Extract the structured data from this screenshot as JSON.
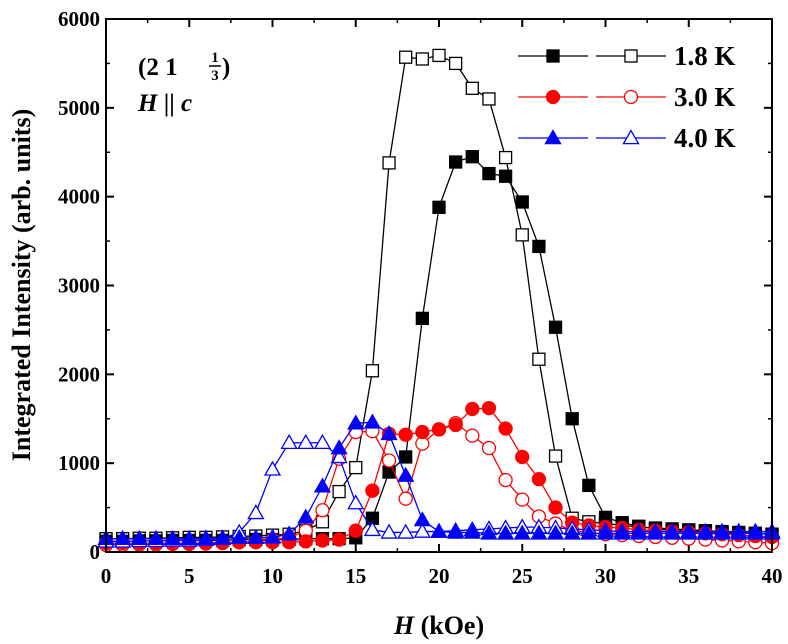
{
  "chart_data": {
    "type": "line",
    "title": "",
    "xlabel_italic": "H",
    "xlabel_rest": " (kOe)",
    "ylabel": "Integrated Intensity (arb. units)",
    "xlim": [
      0,
      40
    ],
    "ylim": [
      0,
      6000
    ],
    "xticks": [
      0,
      5,
      10,
      15,
      20,
      25,
      30,
      35,
      40
    ],
    "yticks": [
      0,
      1000,
      2000,
      3000,
      4000,
      5000,
      6000
    ],
    "annotation": {
      "reflection_prefix": "(2 1 ",
      "frac_num": "1",
      "frac_den": "3",
      "reflection_suffix": ")",
      "field_italic": "H",
      "field_mid": " || ",
      "field_axis_italic": "c"
    },
    "series": [
      {
        "name": "1.8 K",
        "color": "#000000",
        "marker": "square",
        "filled": {
          "x": [
            0,
            1,
            2,
            3,
            4,
            5,
            6,
            7,
            8,
            9,
            10,
            11,
            12,
            13,
            14,
            15,
            16,
            17,
            18,
            19,
            20,
            21,
            22,
            23,
            24,
            25,
            26,
            27,
            28,
            29,
            30,
            31,
            32,
            33,
            34,
            35,
            36,
            37,
            38,
            39,
            40
          ],
          "y": [
            120,
            120,
            125,
            125,
            130,
            130,
            130,
            130,
            140,
            140,
            140,
            140,
            150,
            150,
            150,
            160,
            380,
            900,
            1070,
            2630,
            3880,
            4390,
            4450,
            4260,
            4230,
            3940,
            3440,
            2530,
            1500,
            750,
            390,
            330,
            290,
            260,
            250,
            240,
            230,
            220,
            210,
            210,
            200
          ]
        },
        "open": {
          "x": [
            0,
            1,
            2,
            3,
            4,
            5,
            6,
            7,
            8,
            9,
            10,
            11,
            12,
            13,
            14,
            15,
            16,
            17,
            18,
            19,
            20,
            21,
            22,
            23,
            24,
            25,
            26,
            27,
            28,
            29,
            30,
            31,
            32,
            33,
            34,
            35,
            36,
            37,
            38,
            39,
            40
          ],
          "y": [
            150,
            150,
            155,
            155,
            160,
            165,
            165,
            170,
            175,
            180,
            190,
            200,
            240,
            340,
            680,
            950,
            2040,
            4380,
            5570,
            5550,
            5590,
            5500,
            5220,
            5100,
            4440,
            3570,
            2170,
            1080,
            380,
            340,
            320,
            300,
            280,
            270,
            260,
            250,
            240,
            230,
            220,
            210,
            200
          ]
        }
      },
      {
        "name": "3.0 K",
        "color": "#ff0000",
        "marker": "circle",
        "filled": {
          "x": [
            0,
            1,
            2,
            3,
            4,
            5,
            6,
            7,
            8,
            9,
            10,
            11,
            12,
            13,
            14,
            15,
            16,
            17,
            18,
            19,
            20,
            21,
            22,
            23,
            24,
            25,
            26,
            27,
            28,
            29,
            30,
            31,
            32,
            33,
            34,
            35,
            36,
            37,
            38,
            39,
            40
          ],
          "y": [
            100,
            100,
            100,
            100,
            100,
            100,
            100,
            110,
            110,
            110,
            110,
            110,
            120,
            130,
            140,
            240,
            690,
            1330,
            1320,
            1350,
            1380,
            1430,
            1610,
            1620,
            1390,
            1070,
            820,
            500,
            330,
            300,
            280,
            270,
            250,
            240,
            230,
            220,
            210,
            200,
            190,
            180,
            170
          ]
        },
        "open": {
          "x": [
            0,
            1,
            2,
            3,
            4,
            5,
            6,
            7,
            8,
            9,
            10,
            11,
            12,
            13,
            14,
            15,
            16,
            17,
            18,
            19,
            20,
            21,
            22,
            23,
            24,
            25,
            26,
            27,
            28,
            29,
            30,
            31,
            32,
            33,
            34,
            35,
            36,
            37,
            38,
            39,
            40
          ],
          "y": [
            80,
            80,
            85,
            85,
            90,
            90,
            95,
            100,
            110,
            120,
            140,
            160,
            240,
            470,
            1050,
            1350,
            1360,
            1030,
            600,
            1220,
            1380,
            1450,
            1310,
            1170,
            810,
            590,
            400,
            320,
            240,
            220,
            200,
            190,
            180,
            170,
            160,
            150,
            140,
            130,
            120,
            110,
            100
          ]
        }
      },
      {
        "name": "4.0 K",
        "color": "#0000ff",
        "marker": "triangle",
        "filled": {
          "x": [
            0,
            1,
            2,
            3,
            4,
            5,
            6,
            7,
            8,
            9,
            10,
            11,
            12,
            13,
            14,
            15,
            16,
            17,
            18,
            19,
            20,
            21,
            22,
            23,
            24,
            25,
            26,
            27,
            28,
            29,
            30,
            31,
            32,
            33,
            34,
            35,
            36,
            37,
            38,
            39,
            40
          ],
          "y": [
            150,
            150,
            150,
            150,
            150,
            150,
            155,
            155,
            160,
            160,
            165,
            200,
            390,
            740,
            1170,
            1450,
            1460,
            1330,
            860,
            360,
            230,
            220,
            220,
            210,
            210,
            210,
            210,
            210,
            210,
            210,
            210,
            210,
            210,
            210,
            210,
            210,
            210,
            210,
            210,
            210,
            210
          ]
        },
        "open": {
          "x": [
            0,
            1,
            2,
            3,
            4,
            5,
            6,
            7,
            8,
            9,
            10,
            11,
            12,
            13,
            14,
            15,
            16,
            17,
            18,
            19,
            20,
            21,
            22,
            23,
            24,
            25,
            26,
            27,
            28,
            29,
            30,
            31,
            32,
            33,
            34,
            35,
            36,
            37,
            38,
            39,
            40
          ],
          "y": [
            120,
            120,
            125,
            125,
            130,
            130,
            140,
            150,
            220,
            440,
            930,
            1230,
            1230,
            1230,
            1070,
            550,
            250,
            220,
            220,
            230,
            230,
            240,
            250,
            260,
            270,
            280,
            280,
            270,
            260,
            250,
            240,
            230,
            230,
            230,
            230,
            230,
            230,
            230,
            230,
            230,
            230
          ]
        }
      }
    ]
  }
}
